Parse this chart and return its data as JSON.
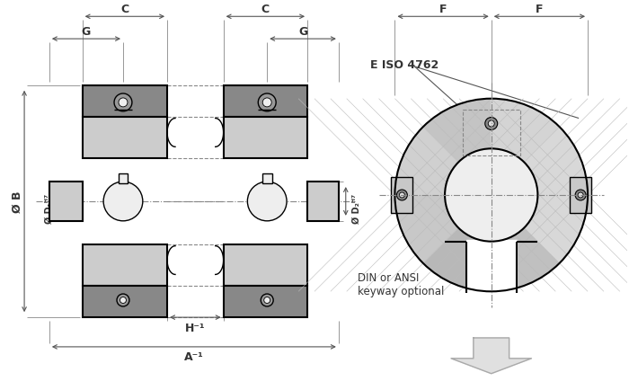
{
  "bg_color": "#ffffff",
  "line_color": "#000000",
  "dim_color": "#555555",
  "gray_dark": "#555555",
  "gray_mid": "#888888",
  "gray_light": "#bbbbbb",
  "gray_lighter": "#d8d8d8",
  "gray_lightest": "#eeeeee",
  "labels": {
    "C": "C",
    "G": "G",
    "B": "Ø B",
    "D1": "Ø D₁ᴴ⁷",
    "D2": "Ø D₂ᴴ⁷",
    "H": "H⁻¹",
    "A": "A⁻¹",
    "F": "F",
    "E": "E ISO 4762",
    "DIN": "DIN or ANSI",
    "keyway": "keyway optional"
  },
  "figsize": [
    7.0,
    4.35
  ],
  "dpi": 100
}
